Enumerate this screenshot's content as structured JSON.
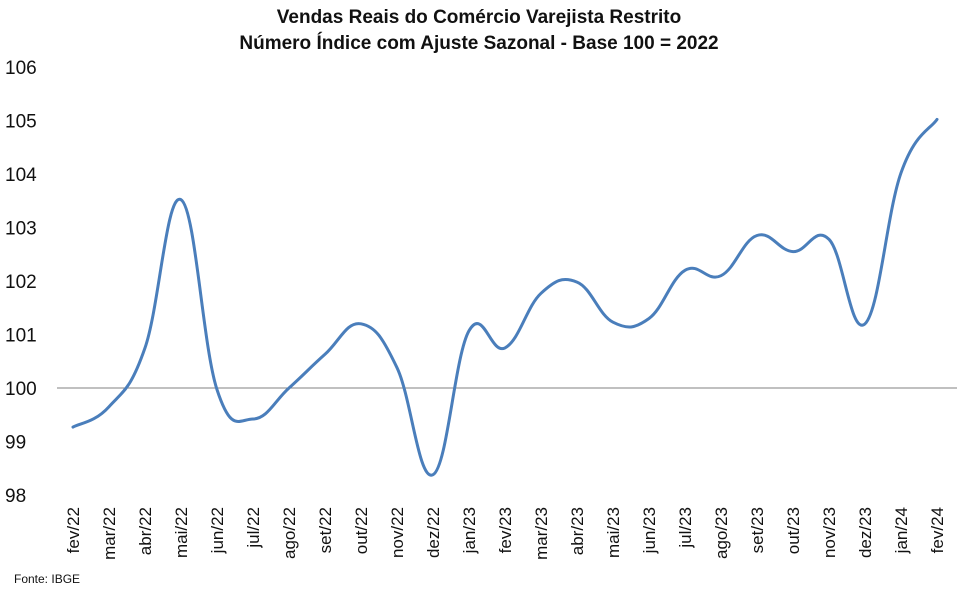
{
  "chart_data": {
    "type": "line",
    "title": "Vendas Reais do Comércio Varejista Restrito",
    "subtitle": "Número Índice com Ajuste Sazonal - Base 100 = 2022",
    "xlabel": "",
    "ylabel": "",
    "ylim": [
      98,
      106
    ],
    "yticks": [
      98,
      99,
      100,
      101,
      102,
      103,
      104,
      105,
      106
    ],
    "reference_line": 100,
    "grid": false,
    "legend": "none",
    "categories": [
      "fev/22",
      "mar/22",
      "abr/22",
      "mai/22",
      "jun/22",
      "jul/22",
      "ago/22",
      "set/22",
      "out/22",
      "nov/22",
      "dez/22",
      "jan/23",
      "fev/23",
      "mar/23",
      "abr/23",
      "mai/23",
      "jun/23",
      "jul/23",
      "ago/23",
      "set/23",
      "out/23",
      "nov/23",
      "dez/23",
      "jan/24",
      "fev/24"
    ],
    "series": [
      {
        "values": [
          99.27,
          99.65,
          100.75,
          103.52,
          99.97,
          99.42,
          100.0,
          100.63,
          101.2,
          100.38,
          98.38,
          101.07,
          100.75,
          101.77,
          101.98,
          101.23,
          101.3,
          102.2,
          102.1,
          102.85,
          102.55,
          102.78,
          101.2,
          104.02,
          105.02
        ],
        "color": "#4a7ebb"
      }
    ],
    "source": "Fonte: IBGE"
  }
}
